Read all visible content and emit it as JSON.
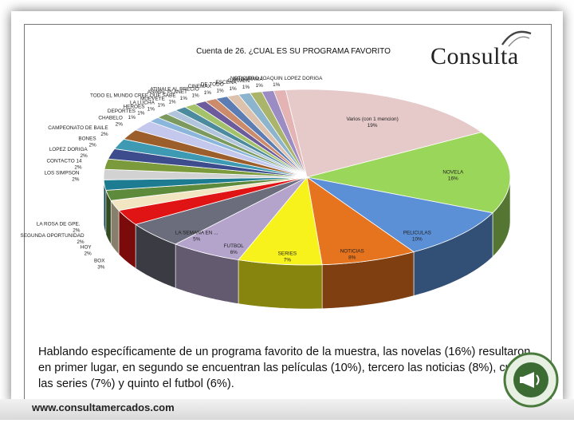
{
  "brand": {
    "name": "Consulta",
    "url": "www.consultamercados.com"
  },
  "caption": "Hablando específicamente de un programa favorito de la muestra, las novelas (16%) resultaron en primer lugar, en segundo se encuentran las películas (10%), tercero las noticias (8%), cuarto las series (7%) y quinto el futbol (6%).",
  "chart_data": {
    "type": "pie",
    "style": "3d-exploded",
    "title": "Cuenta de 26. ¿CUAL ES SU PROGRAMA FAVORITO",
    "legend": "none",
    "value_unit": "%",
    "slices": [
      {
        "label": "Varios (con 1 mencion)",
        "value": 19,
        "display": "19%",
        "color": "#e6c9c9"
      },
      {
        "label": "NOVELA",
        "value": 16,
        "display": "16%",
        "color": "#9ad65a"
      },
      {
        "label": "PELICULAS",
        "value": 10,
        "display": "10%",
        "color": "#5b8fd6"
      },
      {
        "label": "NOTICIAS",
        "value": 8,
        "display": "8%",
        "color": "#e6731e"
      },
      {
        "label": "SERIES",
        "value": 7,
        "display": "7%",
        "color": "#f7f21c"
      },
      {
        "label": "FUTBOL",
        "value": 6,
        "display": "6%",
        "color": "#b4a4cc"
      },
      {
        "label": "LA SEMANA EN ...",
        "value": 5,
        "display": "5%",
        "color": "#6b6c7c"
      },
      {
        "label": "BOX",
        "value": 3,
        "display": "3%",
        "color": "#e01414"
      },
      {
        "label": "HOY",
        "value": 2,
        "display": "2%",
        "color": "#f2e6c2"
      },
      {
        "label": "SEGUNDA OPORTUNIDAD",
        "value": 2,
        "display": "2%",
        "color": "#5e8a3c"
      },
      {
        "label": "LA ROSA DE GPE.",
        "value": 2,
        "display": "2%",
        "color": "#1e7c92"
      },
      {
        "label": "LOS SIMPSON",
        "value": 2,
        "display": "2%",
        "color": "#d2d2d2"
      },
      {
        "label": "CONTACTO 14",
        "value": 2,
        "display": "2%",
        "color": "#7a9a3c"
      },
      {
        "label": "LOPEZ DORIGA",
        "value": 2,
        "display": "2%",
        "color": "#3c4c8c"
      },
      {
        "label": "BONES",
        "value": 2,
        "display": "2%",
        "color": "#3e9ab2"
      },
      {
        "label": "CAMPEONATO DE BAILE",
        "value": 2,
        "display": "2%",
        "color": "#9c5e2a"
      },
      {
        "label": "CHABELO",
        "value": 2,
        "display": "2%",
        "color": "#c4c8ec"
      },
      {
        "label": "DEPORTES",
        "value": 1,
        "display": "1%",
        "color": "#8ab6dc"
      },
      {
        "label": "HEROES",
        "value": 1,
        "display": "1%",
        "color": "#7c9a5e"
      },
      {
        "label": "LA LUCHA",
        "value": 1,
        "display": "1%",
        "color": "#b0c4dc"
      },
      {
        "label": "MUEVETE",
        "value": 1,
        "display": "1%",
        "color": "#4c8a9e"
      },
      {
        "label": "TODO EL MUNDO CREE QUE SABE",
        "value": 1,
        "display": "1%",
        "color": "#a4c26a"
      },
      {
        "label": "ANIMAL PLANET",
        "value": 1,
        "display": "1%",
        "color": "#6c5c9c"
      },
      {
        "label": "ATINALE AL PRECIO",
        "value": 1,
        "display": "1%",
        "color": "#cc8c6c"
      },
      {
        "label": "CINEMAX",
        "value": 1,
        "display": "1%",
        "color": "#5c7cb4"
      },
      {
        "label": "DE TODO",
        "value": 1,
        "display": "1%",
        "color": "#dcc2ac"
      },
      {
        "label": "ESCENA",
        "value": 1,
        "display": "1%",
        "color": "#8cb4cc"
      },
      {
        "label": "CARMEN",
        "value": 1,
        "display": "1%",
        "color": "#aab46a"
      },
      {
        "label": "PROGRAMA",
        "value": 1,
        "display": "1%",
        "color": "#9c8cc4"
      },
      {
        "label": "NOTICIERO JOAQUIN LOPEZ DORIGA",
        "value": 1,
        "display": "1%",
        "color": "#e4b4b4"
      }
    ]
  }
}
